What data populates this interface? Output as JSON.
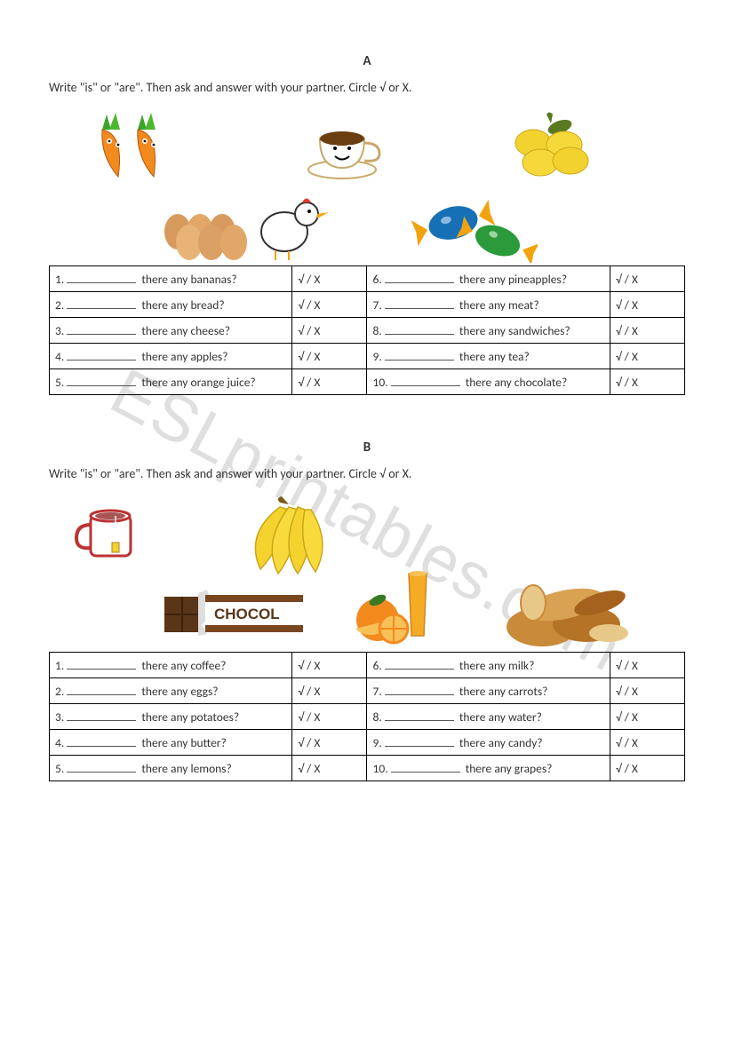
{
  "watermark": "ESLprintables.com",
  "sections": {
    "a": {
      "title": "A",
      "instructions": "Write \"is\" or \"are\". Then ask and answer with your partner. Circle √ or X.",
      "marks": "√   /   X",
      "questions_left": [
        {
          "num": "1.",
          "text": "there any bananas?"
        },
        {
          "num": "2.",
          "text": "there any bread?"
        },
        {
          "num": "3.",
          "text": "there any cheese?"
        },
        {
          "num": "4.",
          "text": "there any apples?"
        },
        {
          "num": "5.",
          "text": "there any orange juice?"
        }
      ],
      "questions_right": [
        {
          "num": "6.",
          "text": "there any pineapples?"
        },
        {
          "num": "7.",
          "text": "there any meat?"
        },
        {
          "num": "8.",
          "text": "there any sandwiches?"
        },
        {
          "num": "9.",
          "text": "there any tea?"
        },
        {
          "num": "10.",
          "text": "there any chocolate?"
        }
      ]
    },
    "b": {
      "title": "B",
      "instructions": "Write \"is\" or \"are\". Then ask and answer with your partner. Circle √ or X.",
      "marks": "√   /   X",
      "questions_left": [
        {
          "num": "1.",
          "text": "there any coffee?"
        },
        {
          "num": "2.",
          "text": "there any eggs?"
        },
        {
          "num": "3.",
          "text": "there any potatoes?"
        },
        {
          "num": "4.",
          "text": "there any butter?"
        },
        {
          "num": "5.",
          "text": "there any lemons?"
        }
      ],
      "questions_right": [
        {
          "num": "6.",
          "text": "there any milk?"
        },
        {
          "num": "7.",
          "text": "there any carrots?"
        },
        {
          "num": "8.",
          "text": "there any water?"
        },
        {
          "num": "9.",
          "text": "there any candy?"
        },
        {
          "num": "10.",
          "text": "there any grapes?"
        }
      ]
    }
  },
  "icons": {
    "a": [
      "carrots",
      "coffee",
      "lemons",
      "eggs",
      "candy"
    ],
    "b": [
      "tea",
      "bananas",
      "chocolate",
      "orange-juice",
      "bread"
    ]
  },
  "chocolate_label": "CHOCOL"
}
